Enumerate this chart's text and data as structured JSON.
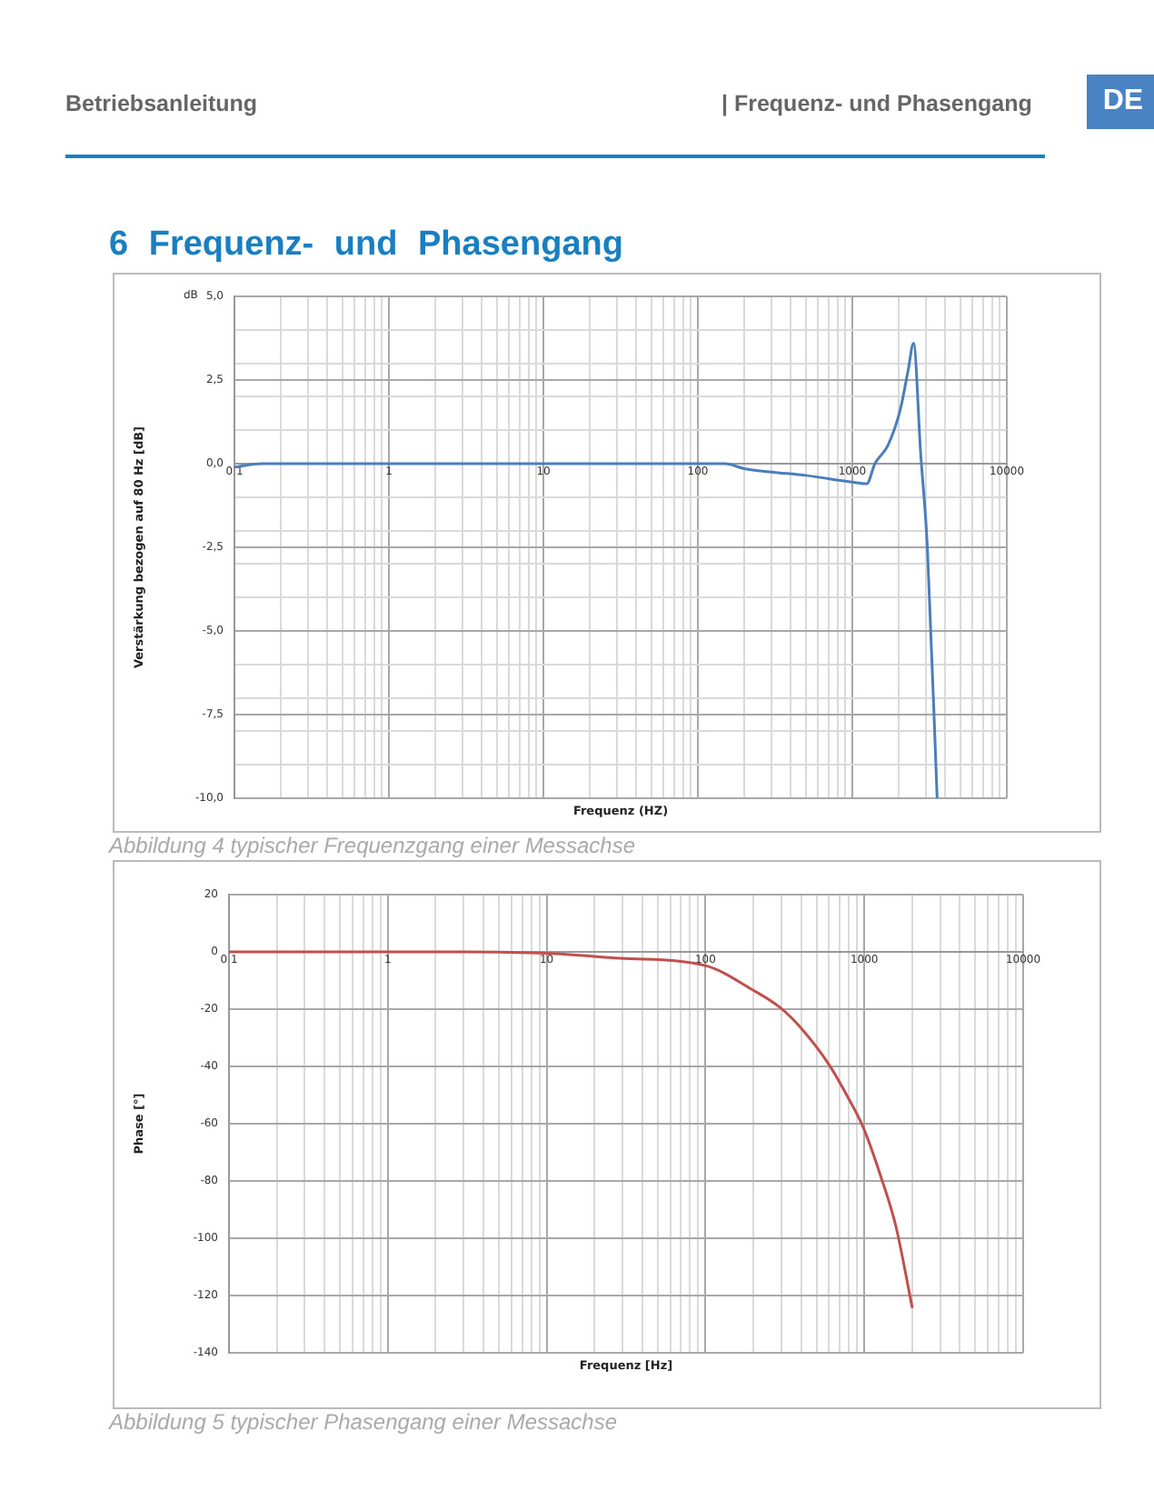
{
  "chart_data": [
    {
      "type": "line",
      "title": "6 Frequenz- und Phasengang",
      "xlabel": "Frequenz (HZ)",
      "ylabel": "Verstärkung bezogen auf 80 Hz [dB]",
      "annotations": [
        "Betriebsanleitung",
        "| Frequenz- und Phasengang",
        "DE",
        "dB",
        "Abbildung 4 typischer Frequenzgang einer Messachse"
      ],
      "x": [
        0.1,
        0.15,
        0.3,
        1,
        10,
        100,
        150,
        200,
        300,
        500,
        700,
        1000,
        1240,
        1400,
        1700,
        2040,
        2300,
        2490,
        2770,
        3060,
        3540
      ],
      "values": [
        -0.1,
        0,
        0,
        0,
        0,
        0,
        0,
        -0.15,
        -0.25,
        -0.35,
        -0.45,
        -0.55,
        -0.6,
        0,
        0.55,
        1.6,
        2.8,
        3.6,
        0.3,
        -2.5,
        -10
      ],
      "color": "#4a7ebb",
      "log": "x",
      "marker": "none",
      "grid": true,
      "xlim": [
        0.1,
        10000
      ],
      "ylim": [
        -10,
        5
      ],
      "xticks": [
        {
          "value": 0.1,
          "label": "0,1"
        },
        {
          "value": 0.2,
          "label": null
        },
        {
          "value": 0.3,
          "label": null
        },
        {
          "value": 0.4,
          "label": null
        },
        {
          "value": 0.5,
          "label": null
        },
        {
          "value": 0.6,
          "label": null
        },
        {
          "value": 0.7,
          "label": null
        },
        {
          "value": 0.8,
          "label": null
        },
        {
          "value": 0.9,
          "label": null
        },
        1,
        {
          "value": 2,
          "label": null
        },
        {
          "value": 3,
          "label": null
        },
        {
          "value": 4,
          "label": null
        },
        {
          "value": 5,
          "label": null
        },
        {
          "value": 6,
          "label": null
        },
        {
          "value": 7,
          "label": null
        },
        {
          "value": 8,
          "label": null
        },
        {
          "value": 9,
          "label": null
        },
        10,
        {
          "value": 20,
          "label": null
        },
        {
          "value": 30,
          "label": null
        },
        {
          "value": 40,
          "label": null
        },
        {
          "value": 50,
          "label": null
        },
        {
          "value": 60,
          "label": null
        },
        {
          "value": 70,
          "label": null
        },
        {
          "value": 80,
          "label": null
        },
        {
          "value": 90,
          "label": null
        },
        100,
        {
          "value": 200,
          "label": null
        },
        {
          "value": 300,
          "label": null
        },
        {
          "value": 400,
          "label": null
        },
        {
          "value": 500,
          "label": null
        },
        {
          "value": 600,
          "label": null
        },
        {
          "value": 700,
          "label": null
        },
        {
          "value": 800,
          "label": null
        },
        {
          "value": 900,
          "label": null
        },
        1000,
        {
          "value": 2000,
          "label": null
        },
        {
          "value": 3000,
          "label": null
        },
        {
          "value": 4000,
          "label": null
        },
        {
          "value": 5000,
          "label": null
        },
        {
          "value": 6000,
          "label": null
        },
        {
          "value": 7000,
          "label": null
        },
        {
          "value": 8000,
          "label": null
        },
        {
          "value": 9000,
          "label": null
        },
        10000
      ],
      "yticks": [
        {
          "value": 5,
          "label": "5,0"
        },
        {
          "value": 4,
          "label": null
        },
        {
          "value": 3,
          "label": null
        },
        {
          "value": 2.5,
          "label": "2,5"
        },
        {
          "value": 2,
          "label": null
        },
        {
          "value": 1,
          "label": null
        },
        {
          "value": 0,
          "label": "0,0"
        },
        {
          "value": -1,
          "label": null
        },
        {
          "value": -2,
          "label": null
        },
        {
          "value": -2.5,
          "label": "-2,5"
        },
        {
          "value": -3,
          "label": null
        },
        {
          "value": -4,
          "label": null
        },
        {
          "value": -5,
          "label": "-5,0"
        },
        {
          "value": -6,
          "label": null
        },
        {
          "value": -7,
          "label": null
        },
        {
          "value": -7.5,
          "label": "-7,5"
        },
        {
          "value": -8,
          "label": null
        },
        {
          "value": -9,
          "label": null
        },
        {
          "value": -10,
          "label": "-10,0"
        }
      ]
    },
    {
      "type": "line",
      "xlabel": "Frequenz [Hz]",
      "ylabel": "Phase [°]",
      "annotations": [
        "Abbildung 5 typischer Phasengang einer Messachse"
      ],
      "x": [
        0.1,
        1,
        3,
        10,
        29,
        100,
        200,
        296,
        404,
        600,
        780,
        980,
        1270,
        1580,
        2000
      ],
      "values": [
        0,
        0,
        0,
        -0.5,
        -2.2,
        -4.8,
        -13.4,
        -19.5,
        -26.9,
        -39.4,
        -50.3,
        -61,
        -78.4,
        -95.8,
        -124
      ],
      "color": "#c0504d",
      "log": "x",
      "marker": "none",
      "grid": true,
      "xlim": [
        0.1,
        10000
      ],
      "ylim": [
        -140,
        20
      ],
      "xticks": [
        {
          "value": 0.1,
          "label": "0,1"
        },
        {
          "value": 0.2,
          "label": null
        },
        {
          "value": 0.3,
          "label": null
        },
        {
          "value": 0.4,
          "label": null
        },
        {
          "value": 0.5,
          "label": null
        },
        {
          "value": 0.6,
          "label": null
        },
        {
          "value": 0.7,
          "label": null
        },
        {
          "value": 0.8,
          "label": null
        },
        {
          "value": 0.9,
          "label": null
        },
        1,
        {
          "value": 2,
          "label": null
        },
        {
          "value": 3,
          "label": null
        },
        {
          "value": 4,
          "label": null
        },
        {
          "value": 5,
          "label": null
        },
        {
          "value": 6,
          "label": null
        },
        {
          "value": 7,
          "label": null
        },
        {
          "value": 8,
          "label": null
        },
        {
          "value": 9,
          "label": null
        },
        10,
        {
          "value": 20,
          "label": null
        },
        {
          "value": 30,
          "label": null
        },
        {
          "value": 40,
          "label": null
        },
        {
          "value": 50,
          "label": null
        },
        {
          "value": 60,
          "label": null
        },
        {
          "value": 70,
          "label": null
        },
        {
          "value": 80,
          "label": null
        },
        {
          "value": 90,
          "label": null
        },
        100,
        {
          "value": 200,
          "label": null
        },
        {
          "value": 300,
          "label": null
        },
        {
          "value": 400,
          "label": null
        },
        {
          "value": 500,
          "label": null
        },
        {
          "value": 600,
          "label": null
        },
        {
          "value": 700,
          "label": null
        },
        {
          "value": 800,
          "label": null
        },
        {
          "value": 900,
          "label": null
        },
        1000,
        {
          "value": 2000,
          "label": null
        },
        {
          "value": 3000,
          "label": null
        },
        {
          "value": 4000,
          "label": null
        },
        {
          "value": 5000,
          "label": null
        },
        {
          "value": 6000,
          "label": null
        },
        {
          "value": 7000,
          "label": null
        },
        {
          "value": 8000,
          "label": null
        },
        {
          "value": 9000,
          "label": null
        },
        10000
      ],
      "yticks": [
        20,
        0,
        -20,
        -40,
        -60,
        -80,
        -100,
        -120,
        -140
      ]
    }
  ]
}
